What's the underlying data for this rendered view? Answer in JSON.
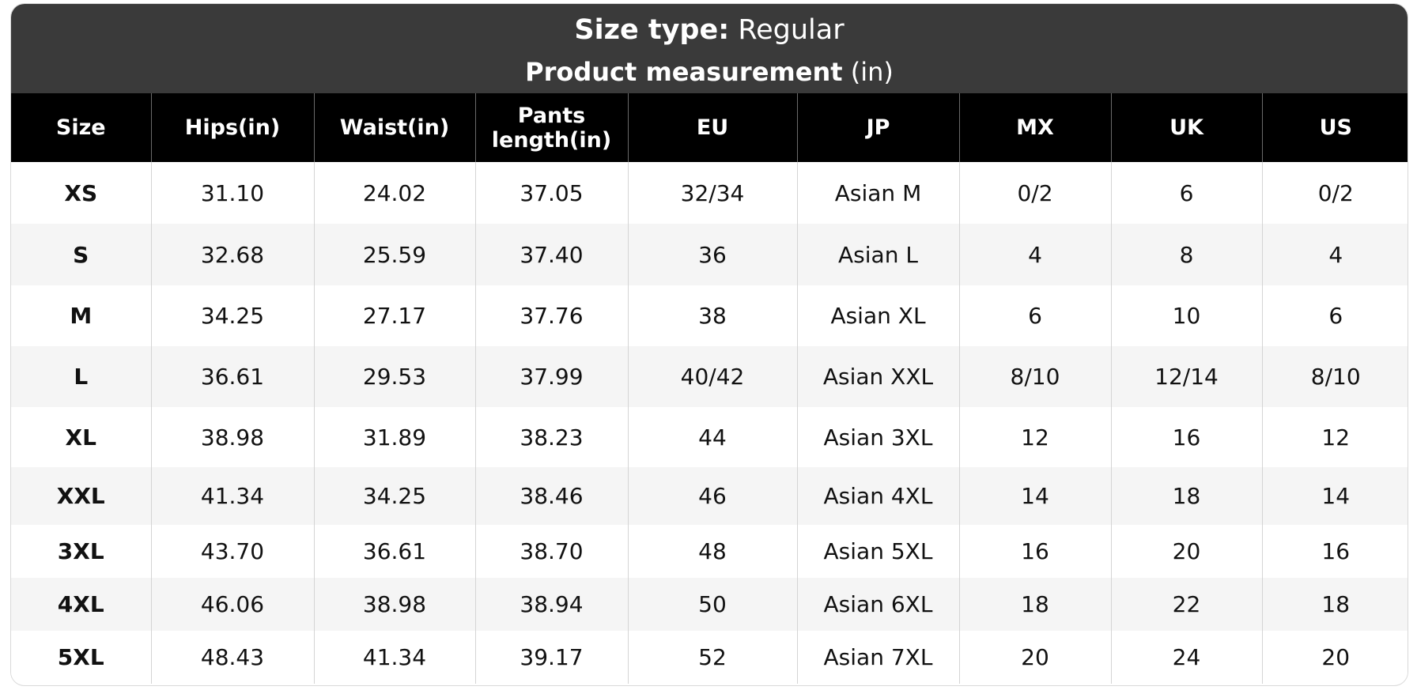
{
  "header": {
    "size_type_label": "Size type:",
    "size_type_value": "Regular",
    "measurement_label": "Product measurement",
    "measurement_unit": "(in)"
  },
  "table": {
    "columns": [
      "Size",
      "Hips(in)",
      "Waist(in)",
      "Pants length(in)",
      "EU",
      "JP",
      "MX",
      "UK",
      "US"
    ],
    "rows": [
      [
        "XS",
        "31.10",
        "24.02",
        "37.05",
        "32/34",
        "Asian M",
        "0/2",
        "6",
        "0/2"
      ],
      [
        "S",
        "32.68",
        "25.59",
        "37.40",
        "36",
        "Asian L",
        "4",
        "8",
        "4"
      ],
      [
        "M",
        "34.25",
        "27.17",
        "37.76",
        "38",
        "Asian XL",
        "6",
        "10",
        "6"
      ],
      [
        "L",
        "36.61",
        "29.53",
        "37.99",
        "40/42",
        "Asian XXL",
        "8/10",
        "12/14",
        "8/10"
      ],
      [
        "XL",
        "38.98",
        "31.89",
        "38.23",
        "44",
        "Asian 3XL",
        "12",
        "16",
        "12"
      ],
      [
        "XXL",
        "41.34",
        "34.25",
        "38.46",
        "46",
        "Asian 4XL",
        "14",
        "18",
        "14"
      ],
      [
        "3XL",
        "43.70",
        "36.61",
        "38.70",
        "48",
        "Asian 5XL",
        "16",
        "20",
        "16"
      ],
      [
        "4XL",
        "46.06",
        "38.98",
        "38.94",
        "50",
        "Asian 6XL",
        "18",
        "22",
        "18"
      ],
      [
        "5XL",
        "48.43",
        "41.34",
        "39.17",
        "52",
        "Asian 7XL",
        "20",
        "24",
        "20"
      ]
    ]
  }
}
